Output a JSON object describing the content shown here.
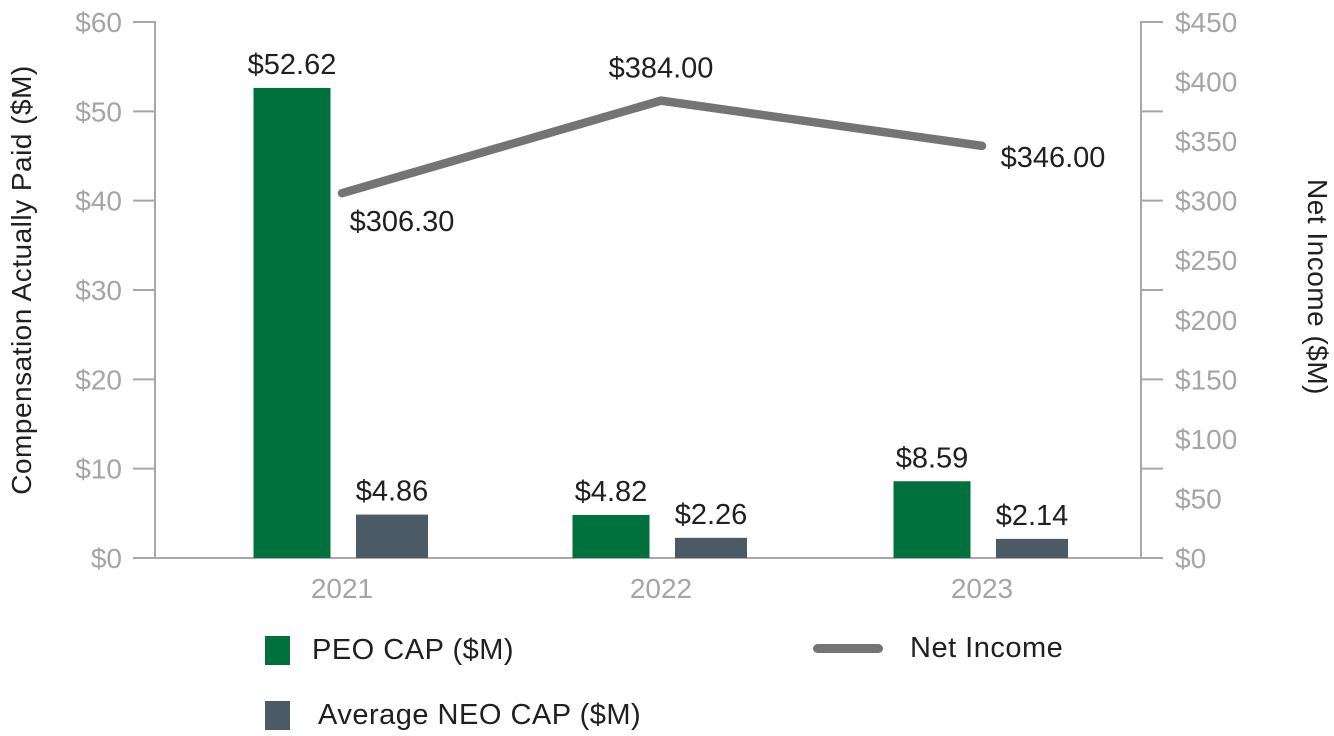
{
  "chart_data": {
    "type": "bar",
    "subtype": "combo-bar-line-dual-axis",
    "categories": [
      "2021",
      "2022",
      "2023"
    ],
    "series": [
      {
        "name": "PEO CAP ($M)",
        "type": "bar",
        "axis": "left",
        "color": "#00713C",
        "values": [
          52.62,
          4.82,
          8.59
        ],
        "labels": [
          "$52.62",
          "$4.82",
          "$8.59"
        ]
      },
      {
        "name": "Average NEO CAP ($M)",
        "type": "bar",
        "axis": "left",
        "color": "#4B5A64",
        "values": [
          4.86,
          2.26,
          2.14
        ],
        "labels": [
          "$4.86",
          "$2.26",
          "$2.14"
        ]
      },
      {
        "name": "Net Income",
        "type": "line",
        "axis": "right",
        "color": "#747474",
        "values": [
          306.3,
          384.0,
          346.0
        ],
        "labels": [
          "$306.30",
          "$384.00",
          "$346.00"
        ]
      }
    ],
    "left_axis": {
      "title": "Compensation Actually Paid ($M)",
      "min": 0,
      "max": 60,
      "tick_step": 10,
      "tick_labels": [
        "$60",
        "$50",
        "$40",
        "$30",
        "$20",
        "$10",
        "$0"
      ]
    },
    "right_axis": {
      "title": "Net Income ($M)",
      "min": 0,
      "max": 450,
      "label_step": 50,
      "tick_labels": [
        "$450",
        "$400",
        "$350",
        "$300",
        "$250",
        "$200",
        "$150",
        "$100",
        "$50",
        "$0"
      ]
    },
    "grid": false,
    "legend_position": "bottom-left",
    "legend": {
      "items": [
        {
          "label": "PEO CAP ($M)",
          "swatch": "square",
          "color": "#00713C"
        },
        {
          "label": "Average NEO CAP ($M)",
          "swatch": "square",
          "color": "#4B5A64"
        },
        {
          "label": "Net Income",
          "swatch": "line",
          "color": "#747474"
        }
      ]
    },
    "colors": {
      "axis_line": "#A8A8A8",
      "tick_label": "#A5A5A5",
      "value_label": "#202020",
      "background": "#FFFFFF"
    }
  }
}
